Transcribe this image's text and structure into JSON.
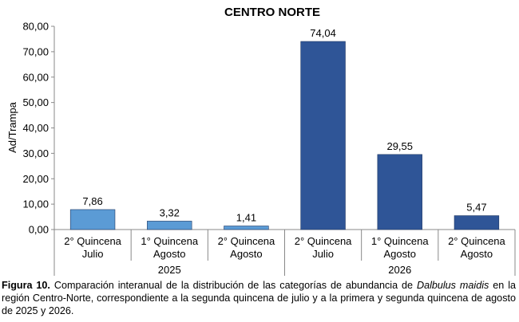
{
  "chart_data": {
    "type": "bar",
    "title": "CENTRO NORTE",
    "ylabel": "Ad/Trampa",
    "ylim": [
      0,
      80
    ],
    "yticks": [
      "0,00",
      "10,00",
      "20,00",
      "30,00",
      "40,00",
      "50,00",
      "60,00",
      "70,00",
      "80,00"
    ],
    "ytick_values": [
      0,
      10,
      20,
      30,
      40,
      50,
      60,
      70,
      80
    ],
    "groups": [
      {
        "label": "2025",
        "color": "#5b9bd5",
        "categories": [
          {
            "line1": "2° Quincena",
            "line2": "Julio"
          },
          {
            "line1": "1° Quincena",
            "line2": "Agosto"
          },
          {
            "line1": "2° Quincena",
            "line2": "Agosto"
          }
        ],
        "values": [
          7.86,
          3.32,
          1.41
        ],
        "labels": [
          "7,86",
          "3,32",
          "1,41"
        ]
      },
      {
        "label": "2026",
        "color": "#2f5597",
        "categories": [
          {
            "line1": "2° Quincena",
            "line2": "Julio"
          },
          {
            "line1": "1° Quincena",
            "line2": "Agosto"
          },
          {
            "line1": "2° Quincena",
            "line2": "Agosto"
          }
        ],
        "values": [
          74.04,
          29.55,
          5.47
        ],
        "labels": [
          "74,04",
          "29,55",
          "5,47"
        ]
      }
    ],
    "grid": false,
    "legend": "none"
  },
  "caption": {
    "figure_label": "Figura 10.",
    "text_before_species": " Comparación interanual de la distribución de las categorías de abundancia de ",
    "species": "Dalbulus maidis",
    "text_after_species": " en la región Centro-Norte, correspondiente a la segunda quincena de julio y a la primera y segunda quincena de agosto de 2025 y 2026."
  }
}
